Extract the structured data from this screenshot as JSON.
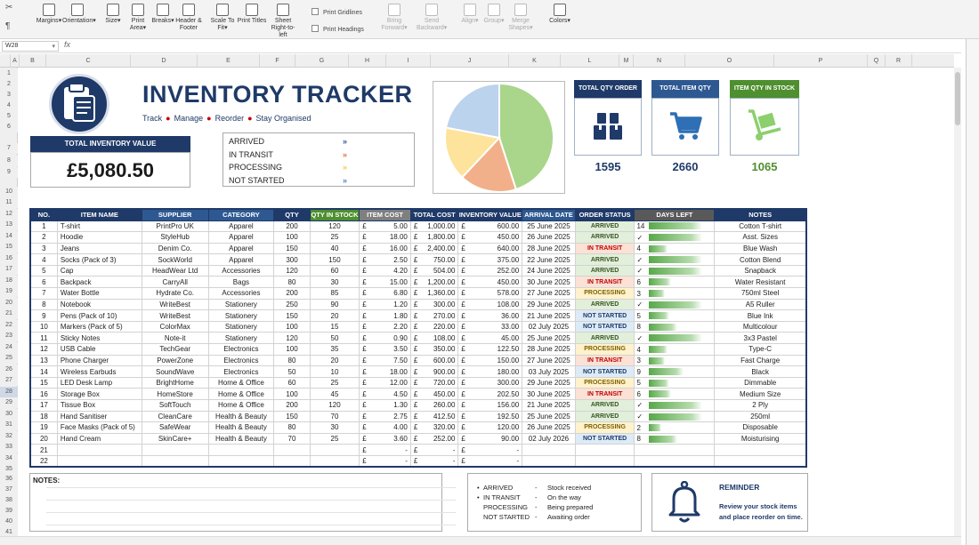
{
  "ribbon": {
    "buttons": [
      {
        "label": "Margins",
        "arrow": "▾"
      },
      {
        "label": "Orientation",
        "arrow": "▾"
      },
      {
        "label": "Size",
        "arrow": "▾"
      },
      {
        "label": "Print Area",
        "arrow": "▾"
      },
      {
        "label": "Breaks",
        "arrow": "▾"
      },
      {
        "label": "Header & Footer",
        "arrow": ""
      },
      {
        "label": "Scale To Fit",
        "arrow": "▾"
      },
      {
        "label": "Print Titles",
        "arrow": ""
      },
      {
        "label": "Sheet Right-to-left",
        "arrow": ""
      },
      {
        "label": "Bring Forward",
        "arrow": "▾"
      },
      {
        "label": "Send Backward",
        "arrow": "▾"
      },
      {
        "label": "Align",
        "arrow": "▾"
      },
      {
        "label": "Group",
        "arrow": "▾"
      },
      {
        "label": "Merge Shapes",
        "arrow": "▾"
      },
      {
        "label": "Colors",
        "arrow": "▾"
      }
    ],
    "print_gridlines": "Print Gridlines",
    "print_headings": "Print Headings"
  },
  "formula_bar": {
    "name_box": "W28",
    "fx": "fx"
  },
  "columns": [
    "A",
    "B",
    "C",
    "D",
    "E",
    "F",
    "G",
    "H",
    "I",
    "J",
    "K",
    "L",
    "M",
    "N",
    "O",
    "P",
    "Q",
    "R"
  ],
  "rows": [
    "1",
    "2",
    "3",
    "4",
    "5",
    "6",
    "7",
    "8",
    "9",
    "10",
    "11",
    "12",
    "13",
    "14",
    "15",
    "16",
    "17",
    "18",
    "19",
    "20",
    "21",
    "22",
    "23",
    "24",
    "25",
    "26",
    "27",
    "28",
    "29",
    "30",
    "31",
    "32",
    "33",
    "34",
    "35",
    "36",
    "37",
    "38",
    "39",
    "40",
    "41"
  ],
  "header": {
    "title": "INVENTORY TRACKER",
    "tag1": "Track",
    "tag2": "Manage",
    "tag3": "Reorder",
    "tag4": "Stay Organised",
    "total_label": "TOTAL INVENTORY VALUE",
    "total_value": "£5,080.50"
  },
  "status_legend": [
    {
      "label": "ARRIVED",
      "color": "#2f4f9f"
    },
    {
      "label": "IN TRANSIT",
      "color": "#e0722e"
    },
    {
      "label": "PROCESSING",
      "color": "#f2c744"
    },
    {
      "label": "NOT STARTED",
      "color": "#4c7fd0"
    }
  ],
  "chart_data": {
    "type": "pie",
    "categories": [
      "ARRIVED",
      "IN TRANSIT",
      "PROCESSING",
      "NOT STARTED"
    ],
    "values": [
      45,
      17,
      16,
      22
    ],
    "colors": [
      "#a9d68a",
      "#f2b08a",
      "#fde39b",
      "#bcd3ee"
    ]
  },
  "cards": [
    {
      "label": "TOTAL QTY ORDER",
      "value": "1595",
      "head_color": "#1f3a68",
      "value_color": "#1f3a68",
      "icon": "boxes-icon"
    },
    {
      "label": "TOTAL ITEM QTY",
      "value": "2660",
      "head_color": "#2e5891",
      "value_color": "#1f3a68",
      "icon": "cart-icon"
    },
    {
      "label": "ITEM QTY IN STOCK",
      "value": "1065",
      "head_color": "#4e8f2f",
      "value_color": "#4e8f2f",
      "icon": "hand-truck-icon"
    }
  ],
  "table": {
    "headers": [
      "NO.",
      "ITEM NAME",
      "SUPPLIER",
      "CATEGORY",
      "QTY",
      "QTY IN STOCK",
      "ITEM COST",
      "TOTAL COST",
      "INVENTORY VALUE",
      "ARRIVAL DATE",
      "ORDER STATUS",
      "DAYS LEFT",
      "NOTES"
    ],
    "rows": [
      {
        "no": "1",
        "item": "T-shirt",
        "supplier": "PrintPro UK",
        "category": "Apparel",
        "qty": "200",
        "stock": "120",
        "cost": "5.00",
        "total": "1,000.00",
        "inv": "600.00",
        "date": "25 June 2025",
        "status": "ARRIVED",
        "days": "14",
        "daysfrac": 0.85,
        "notes": "Cotton T-shirt"
      },
      {
        "no": "2",
        "item": "Hoodie",
        "supplier": "StyleHub",
        "category": "Apparel",
        "qty": "100",
        "stock": "25",
        "cost": "18.00",
        "total": "1,800.00",
        "inv": "450.00",
        "date": "26 June 2025",
        "status": "ARRIVED",
        "days": "✓",
        "daysfrac": 0.85,
        "notes": "Asst. Sizes"
      },
      {
        "no": "3",
        "item": "Jeans",
        "supplier": "Denim Co.",
        "category": "Apparel",
        "qty": "150",
        "stock": "40",
        "cost": "16.00",
        "total": "2,400.00",
        "inv": "640.00",
        "date": "28 June 2025",
        "status": "IN TRANSIT",
        "days": "4",
        "daysfrac": 0.3,
        "notes": "Blue Wash"
      },
      {
        "no": "4",
        "item": "Socks (Pack of 3)",
        "supplier": "SockWorld",
        "category": "Apparel",
        "qty": "300",
        "stock": "150",
        "cost": "2.50",
        "total": "750.00",
        "inv": "375.00",
        "date": "22 June 2025",
        "status": "ARRIVED",
        "days": "✓",
        "daysfrac": 0.85,
        "notes": "Cotton Blend"
      },
      {
        "no": "5",
        "item": "Cap",
        "supplier": "HeadWear Ltd",
        "category": "Accessories",
        "qty": "120",
        "stock": "60",
        "cost": "4.20",
        "total": "504.00",
        "inv": "252.00",
        "date": "24 June 2025",
        "status": "ARRIVED",
        "days": "✓",
        "daysfrac": 0.85,
        "notes": "Snapback"
      },
      {
        "no": "6",
        "item": "Backpack",
        "supplier": "CarryAll",
        "category": "Bags",
        "qty": "80",
        "stock": "30",
        "cost": "15.00",
        "total": "1,200.00",
        "inv": "450.00",
        "date": "30 June 2025",
        "status": "IN TRANSIT",
        "days": "6",
        "daysfrac": 0.35,
        "notes": "Water Resistant"
      },
      {
        "no": "7",
        "item": "Water Bottle",
        "supplier": "Hydrate Co.",
        "category": "Accessories",
        "qty": "200",
        "stock": "85",
        "cost": "6.80",
        "total": "1,360.00",
        "inv": "578.00",
        "date": "27 June 2025",
        "status": "PROCESSING",
        "days": "3",
        "daysfrac": 0.25,
        "notes": "750ml Steel"
      },
      {
        "no": "8",
        "item": "Notebook",
        "supplier": "WriteBest",
        "category": "Stationery",
        "qty": "250",
        "stock": "90",
        "cost": "1.20",
        "total": "300.00",
        "inv": "108.00",
        "date": "29 June 2025",
        "status": "ARRIVED",
        "days": "✓",
        "daysfrac": 0.85,
        "notes": "A5 Ruller"
      },
      {
        "no": "9",
        "item": "Pens (Pack of 10)",
        "supplier": "WriteBest",
        "category": "Stationery",
        "qty": "150",
        "stock": "20",
        "cost": "1.80",
        "total": "270.00",
        "inv": "36.00",
        "date": "21 June 2025",
        "status": "NOT STARTED",
        "days": "5",
        "daysfrac": 0.32,
        "notes": "Blue Ink"
      },
      {
        "no": "10",
        "item": "Markers (Pack of 5)",
        "supplier": "ColorMax",
        "category": "Stationery",
        "qty": "100",
        "stock": "15",
        "cost": "2.20",
        "total": "220.00",
        "inv": "33.00",
        "date": "02 July 2025",
        "status": "NOT STARTED",
        "days": "8",
        "daysfrac": 0.45,
        "notes": "Multicolour"
      },
      {
        "no": "11",
        "item": "Sticky Notes",
        "supplier": "Note-it",
        "category": "Stationery",
        "qty": "120",
        "stock": "50",
        "cost": "0.90",
        "total": "108.00",
        "inv": "45.00",
        "date": "25 June 2025",
        "status": "ARRIVED",
        "days": "✓",
        "daysfrac": 0.85,
        "notes": "3x3 Pastel"
      },
      {
        "no": "12",
        "item": "USB Cable",
        "supplier": "TechGear",
        "category": "Electronics",
        "qty": "100",
        "stock": "35",
        "cost": "3.50",
        "total": "350.00",
        "inv": "122.50",
        "date": "28 June 2025",
        "status": "PROCESSING",
        "days": "4",
        "daysfrac": 0.3,
        "notes": "Type-C"
      },
      {
        "no": "13",
        "item": "Phone Charger",
        "supplier": "PowerZone",
        "category": "Electronics",
        "qty": "80",
        "stock": "20",
        "cost": "7.50",
        "total": "600.00",
        "inv": "150.00",
        "date": "27 June 2025",
        "status": "IN TRANSIT",
        "days": "3",
        "daysfrac": 0.25,
        "notes": "Fast Charge"
      },
      {
        "no": "14",
        "item": "Wireless Earbuds",
        "supplier": "SoundWave",
        "category": "Electronics",
        "qty": "50",
        "stock": "10",
        "cost": "18.00",
        "total": "900.00",
        "inv": "180.00",
        "date": "03 July 2025",
        "status": "NOT STARTED",
        "days": "9",
        "daysfrac": 0.55,
        "notes": "Black"
      },
      {
        "no": "15",
        "item": "LED Desk Lamp",
        "supplier": "BrightHome",
        "category": "Home & Office",
        "qty": "60",
        "stock": "25",
        "cost": "12.00",
        "total": "720.00",
        "inv": "300.00",
        "date": "29 June 2025",
        "status": "PROCESSING",
        "days": "5",
        "daysfrac": 0.32,
        "notes": "Dimmable"
      },
      {
        "no": "16",
        "item": "Storage Box",
        "supplier": "HomeStore",
        "category": "Home & Office",
        "qty": "100",
        "stock": "45",
        "cost": "4.50",
        "total": "450.00",
        "inv": "202.50",
        "date": "30 June 2025",
        "status": "IN TRANSIT",
        "days": "6",
        "daysfrac": 0.35,
        "notes": "Medium Size"
      },
      {
        "no": "17",
        "item": "Tissue Box",
        "supplier": "SoftTouch",
        "category": "Home & Office",
        "qty": "200",
        "stock": "120",
        "cost": "1.30",
        "total": "260.00",
        "inv": "156.00",
        "date": "21 June 2025",
        "status": "ARRIVED",
        "days": "✓",
        "daysfrac": 0.85,
        "notes": "2 Ply"
      },
      {
        "no": "18",
        "item": "Hand Sanitiser",
        "supplier": "CleanCare",
        "category": "Health & Beauty",
        "qty": "150",
        "stock": "70",
        "cost": "2.75",
        "total": "412.50",
        "inv": "192.50",
        "date": "25 June 2025",
        "status": "ARRIVED",
        "days": "✓",
        "daysfrac": 0.85,
        "notes": "250ml"
      },
      {
        "no": "19",
        "item": "Face Masks (Pack of 5)",
        "supplier": "SafeWear",
        "category": "Health & Beauty",
        "qty": "80",
        "stock": "30",
        "cost": "4.00",
        "total": "320.00",
        "inv": "120.00",
        "date": "26 June 2025",
        "status": "PROCESSING",
        "days": "2",
        "daysfrac": 0.2,
        "notes": "Disposable"
      },
      {
        "no": "20",
        "item": "Hand Cream",
        "supplier": "SkinCare+",
        "category": "Health & Beauty",
        "qty": "70",
        "stock": "25",
        "cost": "3.60",
        "total": "252.00",
        "inv": "90.00",
        "date": "02 July 2026",
        "status": "NOT STARTED",
        "days": "8",
        "daysfrac": 0.45,
        "notes": "Moisturising"
      },
      {
        "no": "21",
        "item": "",
        "supplier": "",
        "category": "",
        "qty": "",
        "stock": "",
        "cost": "-",
        "total": "-",
        "inv": "-",
        "date": "",
        "status": "",
        "days": "",
        "daysfrac": 0,
        "notes": ""
      },
      {
        "no": "22",
        "item": "",
        "supplier": "",
        "category": "",
        "qty": "",
        "stock": "",
        "cost": "-",
        "total": "-",
        "inv": "-",
        "date": "",
        "status": "",
        "days": "",
        "daysfrac": 0,
        "notes": ""
      }
    ]
  },
  "status_style": {
    "ARRIVED": {
      "bg": "#e2efda",
      "fg": "#375623"
    },
    "IN TRANSIT": {
      "bg": "#fbe2d5",
      "fg": "#c00000"
    },
    "PROCESSING": {
      "bg": "#fff2cc",
      "fg": "#7f6000"
    },
    "NOT STARTED": {
      "bg": "#ddebf7",
      "fg": "#1f3a68"
    }
  },
  "currency": "£",
  "notes_label": "NOTES:",
  "key": [
    {
      "bullet": "•",
      "status": "ARRIVED",
      "sep": "-",
      "desc": "Stock received"
    },
    {
      "bullet": "•",
      "status": "IN TRANSIT",
      "sep": "-",
      "desc": "On the way"
    },
    {
      "bullet": "",
      "status": "PROCESSING",
      "sep": "-",
      "desc": "Being prepared"
    },
    {
      "bullet": "",
      "status": "NOT STARTED",
      "sep": "-",
      "desc": "Awaiting order"
    }
  ],
  "reminder": {
    "title": "REMINDER",
    "text": "Review your stock items and place reorder on time."
  }
}
